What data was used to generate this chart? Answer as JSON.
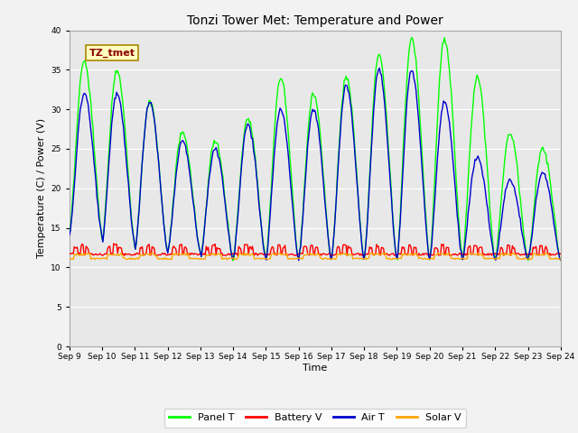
{
  "title": "Tonzi Tower Met: Temperature and Power",
  "xlabel": "Time",
  "ylabel": "Temperature (C) / Power (V)",
  "ylim": [
    0,
    40
  ],
  "yticks": [
    0,
    5,
    10,
    15,
    20,
    25,
    30,
    35,
    40
  ],
  "x_labels": [
    "Sep 9",
    "Sep 10",
    "Sep 11",
    "Sep 12",
    "Sep 13",
    "Sep 14",
    "Sep 15",
    "Sep 16",
    "Sep 17",
    "Sep 18",
    "Sep 19",
    "Sep 20",
    "Sep 21",
    "Sep 22",
    "Sep 23",
    "Sep 24"
  ],
  "annotation_text": "TZ_tmet",
  "annotation_color": "#8B0000",
  "annotation_bg": "#FFFFC0",
  "panel_t_color": "#00FF00",
  "battery_v_color": "#FF0000",
  "air_t_color": "#0000CD",
  "solar_v_color": "#FFA500",
  "legend_labels": [
    "Panel T",
    "Battery V",
    "Air T",
    "Solar V"
  ],
  "bg_color": "#E8E8E8",
  "fig_bg_color": "#F2F2F2",
  "n_points": 500,
  "panel_peaks": [
    36,
    14,
    35,
    13,
    31,
    12,
    27,
    12,
    26,
    11,
    29,
    11,
    34,
    11,
    32,
    11,
    34,
    11,
    37,
    11,
    39,
    11,
    39,
    11,
    34,
    11,
    27,
    11,
    25,
    11
  ],
  "air_peaks": [
    32,
    14,
    32,
    13,
    31,
    12,
    26,
    12,
    25,
    11,
    28,
    11,
    30,
    11,
    30,
    11,
    33,
    11,
    35,
    11,
    35,
    11,
    31,
    11,
    24,
    11,
    21,
    11,
    22,
    11
  ]
}
